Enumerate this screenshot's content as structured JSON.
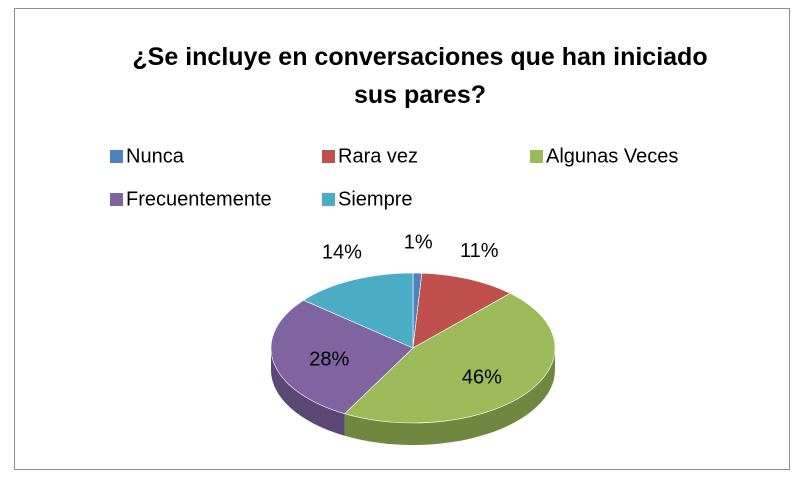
{
  "chart_data": {
    "type": "pie",
    "title": "¿Se incluye en conversaciones que han iniciado sus pares?",
    "categories": [
      "Nunca",
      "Rara vez",
      "Algunas Veces",
      "Frecuentemente",
      "Siempre"
    ],
    "values": [
      1,
      11,
      46,
      28,
      14
    ],
    "value_labels": [
      "1%",
      "11%",
      "46%",
      "28%",
      "14%"
    ],
    "colors": [
      "#4f81bd",
      "#c0504d",
      "#9bbb59",
      "#8064a2",
      "#4bacc6"
    ]
  }
}
